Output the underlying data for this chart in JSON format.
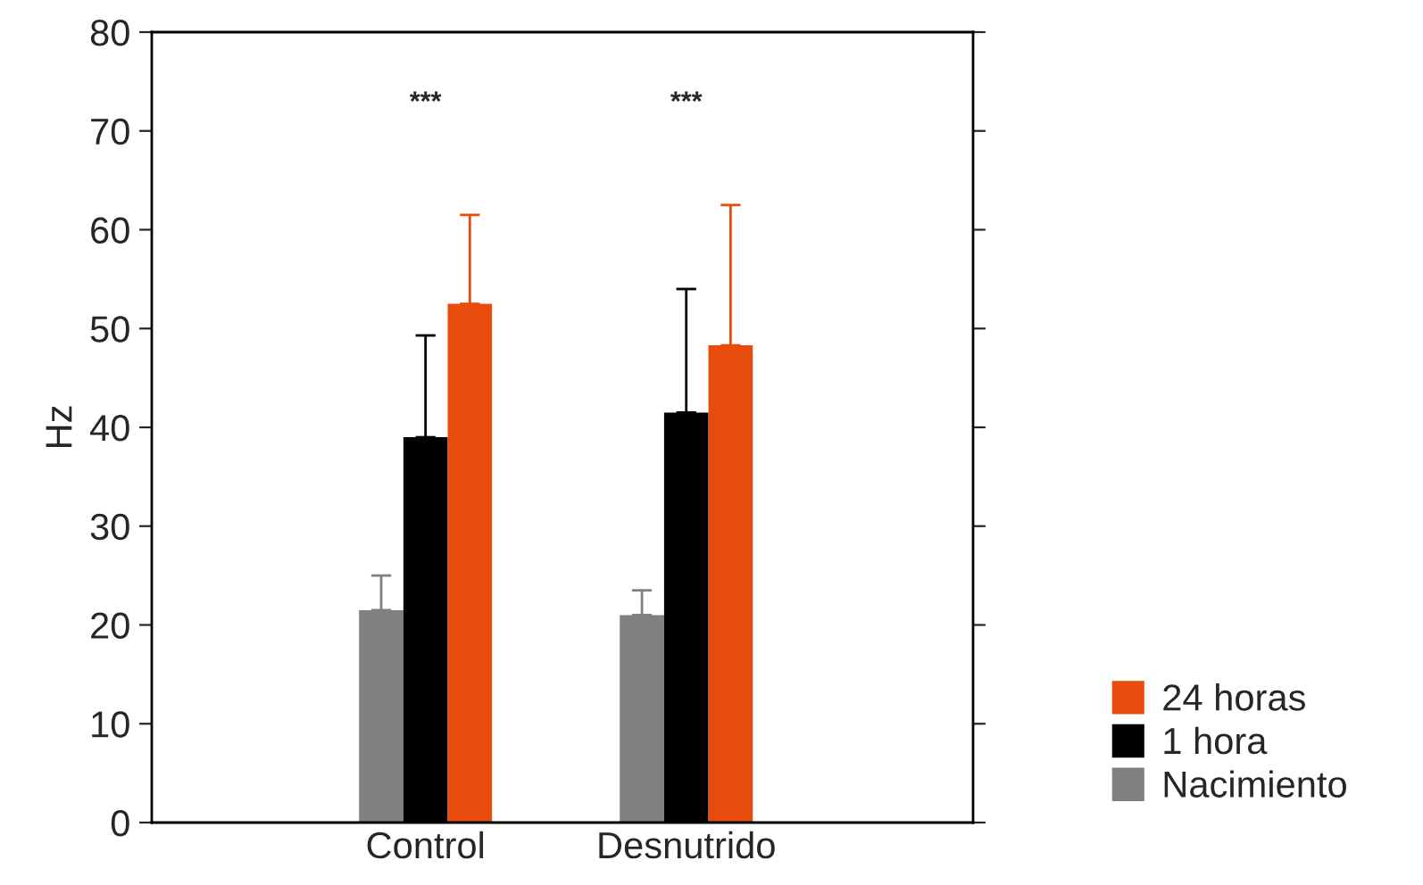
{
  "chart_data": {
    "type": "bar",
    "ylabel": "Hz",
    "categories": [
      "Control",
      "Desnutrido"
    ],
    "series": [
      {
        "name": "Nacimiento",
        "color": "#808080",
        "values": [
          21.5,
          21
        ],
        "errors": [
          [
            21.5,
            25
          ],
          [
            21,
            23.5
          ]
        ]
      },
      {
        "name": "1 hora",
        "color": "#000000",
        "values": [
          39,
          41.5
        ],
        "errors": [
          [
            39,
            49.3
          ],
          [
            41.5,
            54
          ]
        ]
      },
      {
        "name": "24 horas",
        "color": "#e84c0c",
        "values": [
          52.5,
          48.3
        ],
        "errors": [
          [
            52.5,
            61.5
          ],
          [
            48.3,
            62.5
          ]
        ]
      }
    ],
    "ylim": [
      0,
      80
    ],
    "yticks": [
      0,
      10,
      20,
      30,
      40,
      50,
      60,
      70,
      80
    ],
    "annotations": [
      "***",
      "***"
    ],
    "legend": "bottom right",
    "grid": false
  }
}
